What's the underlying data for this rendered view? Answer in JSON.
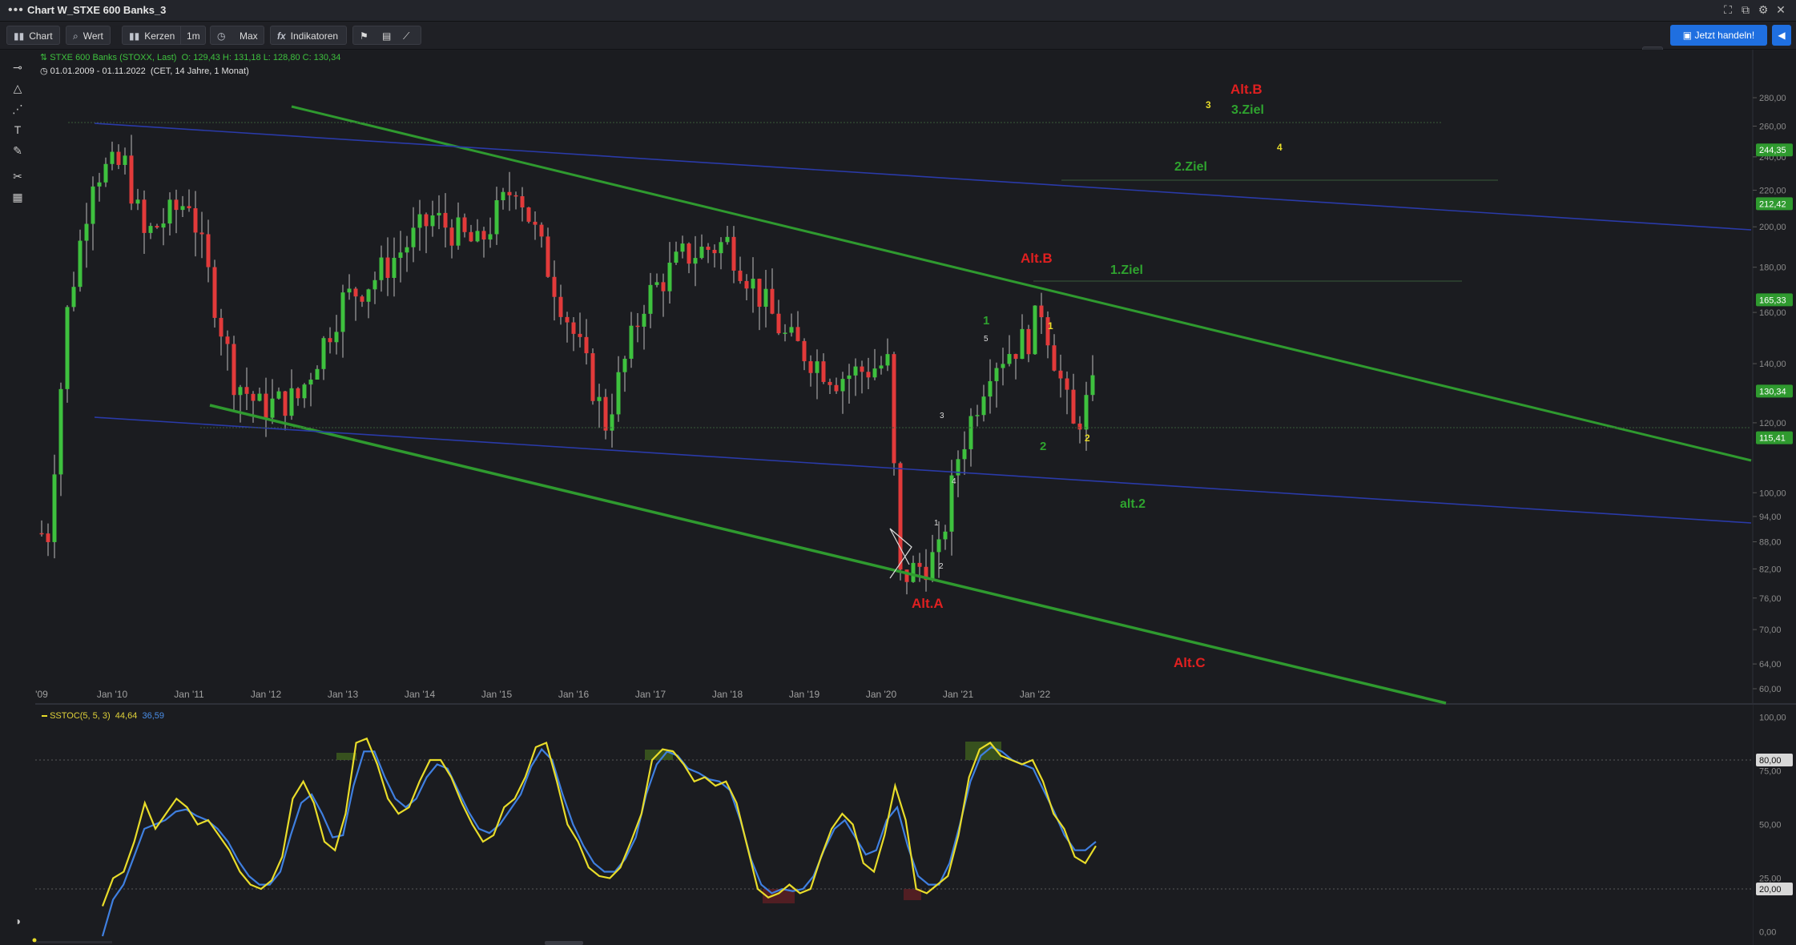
{
  "window": {
    "title": "Chart W_STXE 600 Banks_3",
    "menu_icon": "more-dots-icon"
  },
  "toolbar": {
    "chart_label": "Chart",
    "value_label": "Wert",
    "candles_label": "Kerzen",
    "interval_label": "1m",
    "range_label": "Max",
    "indicators_label": "Indikatoren",
    "trade_label": "Jetzt handeln!"
  },
  "legend": {
    "instrument": "STXE 600 Banks (STOXX, Last)",
    "ohlc": "O: 129,43  H: 131,18  L: 128,80  C: 130,34",
    "date_range": "01.01.2009 - 01.11.2022",
    "date_range_detail": "(CET, 14 Jahre, 1 Monat)"
  },
  "oscillator": {
    "name": "SSTOC(5, 5, 3)",
    "value_k": "44,64",
    "value_d": "36,59",
    "axis_ticks": [
      "100,00",
      "75,00",
      "50,00",
      "25,00",
      "0,00"
    ],
    "level_high": "80,00",
    "level_low": "20,00"
  },
  "colors": {
    "up": "#3ec13e",
    "down": "#e23a3a",
    "trend_green": "#2f9a2f",
    "trend_blue": "#2a3aa8",
    "stoch_k": "#e8dc2a",
    "stoch_d": "#3f7fe0",
    "accent": "#1f6fe0"
  },
  "price_axis": {
    "ticks": [
      "280,00",
      "260,00",
      "240,00",
      "220,00",
      "200,00",
      "180,00",
      "160,00",
      "140,00",
      "120,00",
      "100,00",
      "94,00",
      "88,00",
      "82,00",
      "76,00",
      "70,00",
      "64,00",
      "60,00"
    ],
    "labels": [
      {
        "text": "244,35",
        "value": 244.35
      },
      {
        "text": "212,42",
        "value": 212.42
      },
      {
        "text": "165,33",
        "value": 165.33
      },
      {
        "text": "130,34",
        "value": 130.34
      },
      {
        "text": "115,41",
        "value": 115.41
      }
    ]
  },
  "time_axis": {
    "labels": [
      "'09",
      "Jan '10",
      "Jan '11",
      "Jan '12",
      "Jan '13",
      "Jan '14",
      "Jan '15",
      "Jan '16",
      "Jan '17",
      "Jan '18",
      "Jan '19",
      "Jan '20",
      "Jan '21",
      "Jan '22"
    ]
  },
  "annotations": {
    "alt_b_top": "Alt.B",
    "ziel3": "3.Ziel",
    "ziel2": "2.Ziel",
    "ziel1": "1.Ziel",
    "alt_b_mid": "Alt.B",
    "alt_a": "Alt.A",
    "alt_c": "Alt.C",
    "alt_2": "alt.2",
    "wave_1_green": "1",
    "wave_2_green": "2",
    "wave_1_yellow": "1",
    "wave_2_yellow": "2",
    "wave_3_yellow": "3",
    "wave_4_yellow": "4",
    "wave_3_small": "3",
    "wave_4_small": "4",
    "wave_5_small": "5",
    "wave_1_small": "1",
    "wave_2_small": "2"
  },
  "chart_data": {
    "type": "candlestick",
    "title": "STXE 600 Banks (STOXX, Last)",
    "interval": "1m",
    "x_range": [
      "2009-01",
      "2022-11"
    ],
    "y_range": [
      58,
      290
    ],
    "y_scale": "log",
    "series_monthly_close_approx": [
      {
        "date": "2009-03",
        "value": 90
      },
      {
        "date": "2009-06",
        "value": 160
      },
      {
        "date": "2009-10",
        "value": 230
      },
      {
        "date": "2010-03",
        "value": 235
      },
      {
        "date": "2010-06",
        "value": 195
      },
      {
        "date": "2011-01",
        "value": 215
      },
      {
        "date": "2011-08",
        "value": 135
      },
      {
        "date": "2011-12",
        "value": 125
      },
      {
        "date": "2012-06",
        "value": 128
      },
      {
        "date": "2013-01",
        "value": 165
      },
      {
        "date": "2013-06",
        "value": 175
      },
      {
        "date": "2014-03",
        "value": 205
      },
      {
        "date": "2014-10",
        "value": 190
      },
      {
        "date": "2015-04",
        "value": 225
      },
      {
        "date": "2015-09",
        "value": 180
      },
      {
        "date": "2016-02",
        "value": 145
      },
      {
        "date": "2016-06",
        "value": 120
      },
      {
        "date": "2016-12",
        "value": 165
      },
      {
        "date": "2017-06",
        "value": 185
      },
      {
        "date": "2018-01",
        "value": 192
      },
      {
        "date": "2018-10",
        "value": 150
      },
      {
        "date": "2019-06",
        "value": 135
      },
      {
        "date": "2020-02",
        "value": 140
      },
      {
        "date": "2020-04",
        "value": 80
      },
      {
        "date": "2020-10",
        "value": 85
      },
      {
        "date": "2021-01",
        "value": 110
      },
      {
        "date": "2021-06",
        "value": 140
      },
      {
        "date": "2021-12",
        "value": 150
      },
      {
        "date": "2022-02",
        "value": 162
      },
      {
        "date": "2022-07",
        "value": 118
      },
      {
        "date": "2022-10",
        "value": 130.34
      }
    ]
  }
}
